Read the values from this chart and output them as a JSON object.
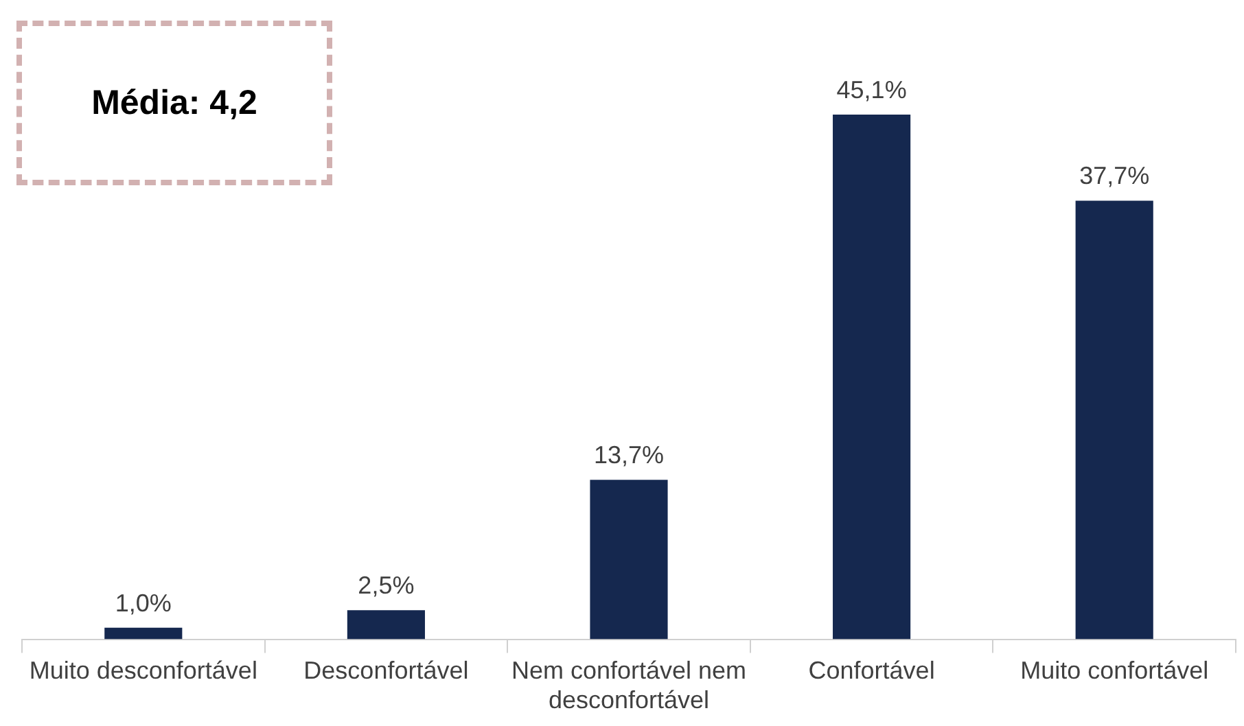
{
  "chart_data": {
    "type": "bar",
    "categories": [
      "Muito desconfortável",
      "Desconfortável",
      "Nem confortável nem desconfortável",
      "Confortável",
      "Muito confortável"
    ],
    "values": [
      1.0,
      2.5,
      13.7,
      45.1,
      37.7
    ],
    "value_labels": [
      "1,0%",
      "2,5%",
      "13,7%",
      "45,1%",
      "37,7%"
    ],
    "color": "#15284f",
    "annotations": [
      "Média: 4,2"
    ]
  }
}
